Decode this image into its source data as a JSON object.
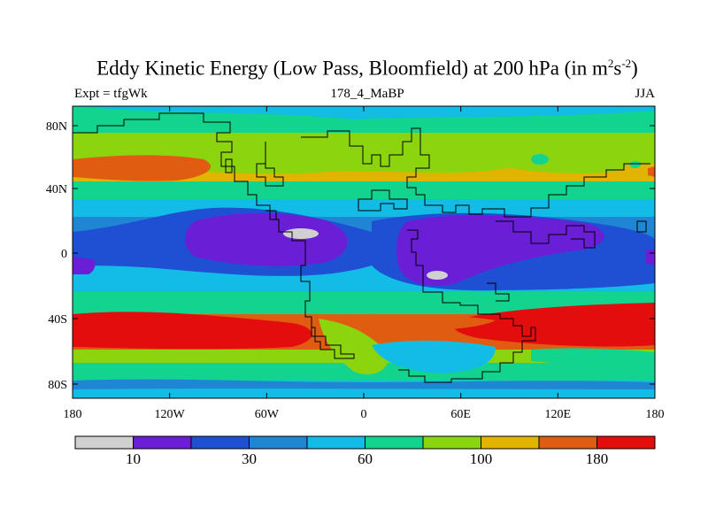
{
  "title_main": "Eddy Kinetic Energy (Low Pass, Bloomfield) at 200 hPa (in m",
  "title_sup1": "2",
  "title_mid": "s",
  "title_sup2": "-2",
  "title_end": ")",
  "left_label": "Expt = tfgWk",
  "center_label": "178_4_MaBP",
  "right_label": "JJA",
  "lat_ticks": [
    "80N",
    "40N",
    "0",
    "40S",
    "80S"
  ],
  "lon_ticks": [
    "180",
    "120W",
    "60W",
    "0",
    "60E",
    "120E",
    "180"
  ],
  "colorbar": {
    "colors": [
      "#d0d0d0",
      "#6a1fd6",
      "#1f50d4",
      "#1f86d4",
      "#12bce4",
      "#12d48e",
      "#8bd40e",
      "#e0b400",
      "#e05c10",
      "#e30d0d"
    ],
    "labels": [
      "10",
      "30",
      "60",
      "100",
      "180"
    ]
  }
}
